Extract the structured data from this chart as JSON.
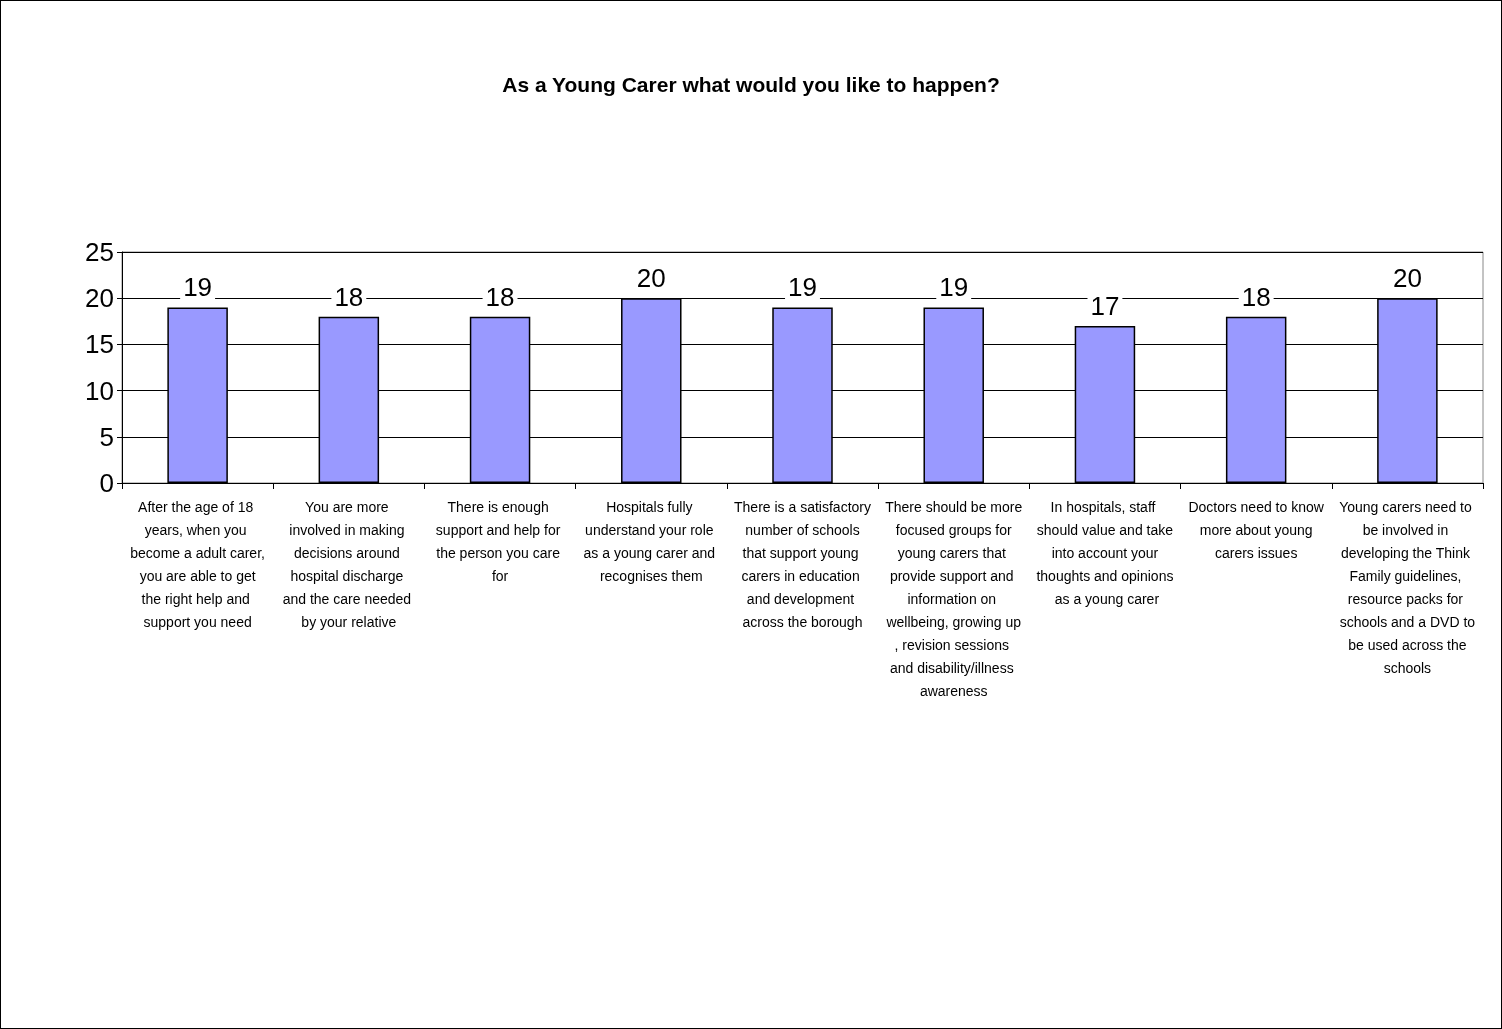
{
  "chart_data": {
    "type": "bar",
    "title": "As a Young Carer what would you like to happen?",
    "categories": [
      "After the age of 18 years, when you become a adult carer, you are able to get the right help and support you need",
      "You are more involved in making decisions around hospital discharge and the care needed by your relative",
      "There is enough support and help for the person you care for",
      "Hospitals fully understand your role as a young carer and recognises them",
      "There is a satisfactory number of schools that support young carers in education and development across the borough",
      "There should be more focused groups for young carers that provide support and information on wellbeing, growing up, revision sessions and disability/illness awareness",
      "In hospitals, staff should value and take into account your thoughts and opinions as a young carer",
      "Doctors need to know more about young carers issues",
      "Young carers need to be involved in developing the Think Family guidelines, resource packs for schools and a DVD to be used across the schools"
    ],
    "values": [
      19,
      18,
      18,
      20,
      19,
      19,
      17,
      18,
      20
    ],
    "color": "#9999ff",
    "ylim": [
      0,
      25
    ],
    "yticks": [
      0,
      5,
      10,
      15,
      20,
      25
    ],
    "grid": "y",
    "data_labels": true
  }
}
